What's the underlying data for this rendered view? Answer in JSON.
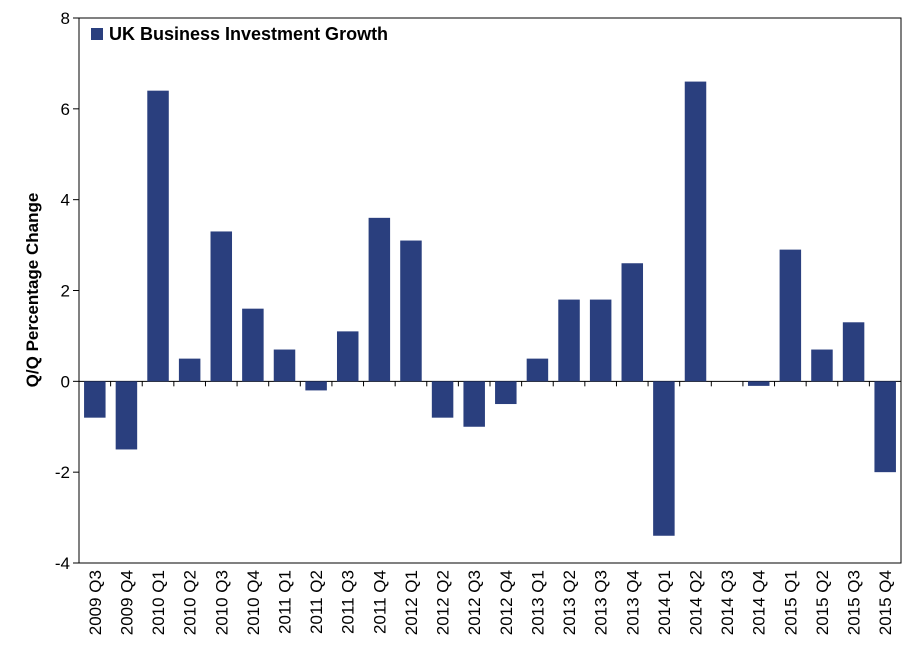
{
  "chart_data": {
    "type": "bar",
    "title": "",
    "xlabel": "",
    "ylabel": "Q/Q Percentage Change",
    "ylim": [
      -4,
      8
    ],
    "yticks": [
      -4,
      -2,
      0,
      2,
      4,
      6,
      8
    ],
    "grid": false,
    "legend_position": "top-left",
    "bar_color": "#2a3f7e",
    "categories": [
      "2009 Q3",
      "2009 Q4",
      "2010 Q1",
      "2010 Q2",
      "2010 Q3",
      "2010 Q4",
      "2011 Q1",
      "2011 Q2",
      "2011 Q3",
      "2011 Q4",
      "2012 Q1",
      "2012 Q2",
      "2012 Q3",
      "2012 Q4",
      "2013 Q1",
      "2013 Q2",
      "2013 Q3",
      "2013 Q4",
      "2014 Q1",
      "2014 Q2",
      "2014 Q3",
      "2014 Q4",
      "2015 Q1",
      "2015 Q2",
      "2015 Q3",
      "2015 Q4"
    ],
    "series": [
      {
        "name": "UK Business Investment Growth",
        "values": [
          -0.8,
          -1.5,
          6.4,
          0.5,
          3.3,
          1.6,
          0.7,
          -0.2,
          1.1,
          3.6,
          3.1,
          -0.8,
          -1.0,
          -0.5,
          0.5,
          1.8,
          1.8,
          2.6,
          -3.4,
          6.6,
          0.0,
          -0.1,
          2.9,
          0.7,
          1.3,
          -2.0
        ]
      }
    ]
  }
}
